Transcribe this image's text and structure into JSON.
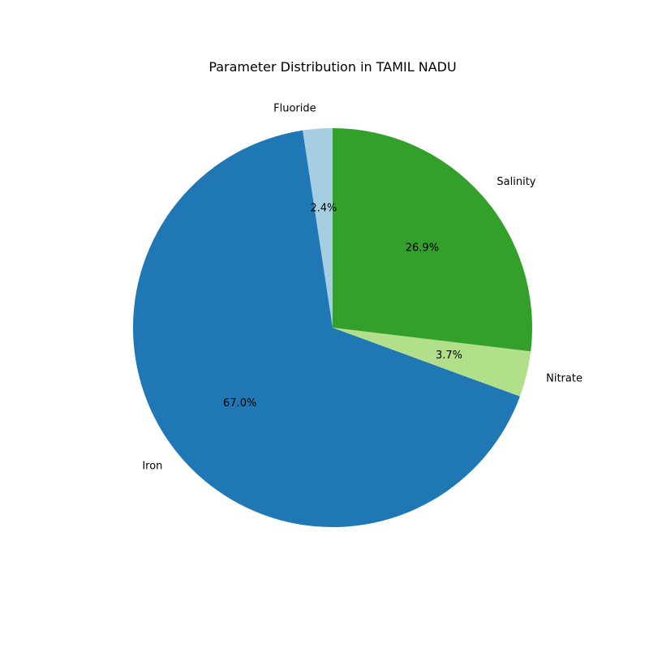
{
  "chart_data": {
    "type": "pie",
    "title": "Parameter Distribution in TAMIL NADU",
    "slices": [
      {
        "label": "Fluoride",
        "value": 2.4,
        "pct_label": "2.4%",
        "color": "#a6cee3"
      },
      {
        "label": "Iron",
        "value": 67.0,
        "pct_label": "67.0%",
        "color": "#1f78b4"
      },
      {
        "label": "Nitrate",
        "value": 3.7,
        "pct_label": "3.7%",
        "color": "#b2df8a"
      },
      {
        "label": "Salinity",
        "value": 26.9,
        "pct_label": "26.9%",
        "color": "#33a02c"
      }
    ],
    "start_angle_deg": 90,
    "direction": "counterclockwise",
    "legend": "none"
  }
}
